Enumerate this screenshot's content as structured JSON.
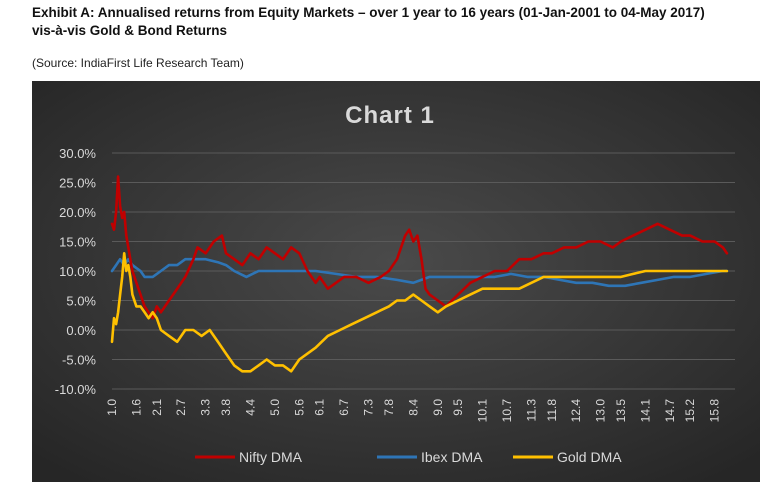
{
  "exhibit": {
    "title_line1": "Exhibit A: Annualised returns from Equity Markets – over 1 year to 16 years (01-Jan-2001 to 04-May 2017)",
    "title_line2": "vis-à-vis Gold & Bond Returns",
    "source": "(Source: IndiaFirst Life Research Team)"
  },
  "colors": {
    "background": "#3a3a3a",
    "nifty": "#c00000",
    "ibex": "#2e75b6",
    "gold": "#ffc000",
    "text": "#d9d9d9"
  },
  "chart_data": {
    "type": "line",
    "title": "Chart 1",
    "xlabel": "",
    "ylabel": "",
    "ylim": [
      -0.1,
      0.3
    ],
    "ytick_labels": [
      "30.0%",
      "25.0%",
      "20.0%",
      "15.0%",
      "10.0%",
      "5.0%",
      "0.0%",
      "-5.0%",
      "-10.0%"
    ],
    "ytick_values": [
      0.3,
      0.25,
      0.2,
      0.15,
      0.1,
      0.05,
      0.0,
      -0.05,
      -0.1
    ],
    "xlim": [
      1.0,
      16.3
    ],
    "xtick_labels": [
      "1.0",
      "1.6",
      "2.1",
      "2.7",
      "3.3",
      "3.8",
      "4.4",
      "5.0",
      "5.6",
      "6.1",
      "6.7",
      "7.3",
      "7.8",
      "8.4",
      "9.0",
      "9.5",
      "10.1",
      "10.7",
      "11.3",
      "11.8",
      "12.4",
      "13.0",
      "13.5",
      "14.1",
      "14.7",
      "15.2",
      "15.8"
    ],
    "grid": true,
    "legend": "bottom",
    "series": [
      {
        "name": "Nifty DMA",
        "x": [
          1.0,
          1.05,
          1.1,
          1.15,
          1.2,
          1.25,
          1.3,
          1.35,
          1.4,
          1.45,
          1.5,
          1.6,
          1.7,
          1.8,
          1.9,
          2.0,
          2.1,
          2.2,
          2.4,
          2.6,
          2.8,
          3.0,
          3.1,
          3.3,
          3.5,
          3.7,
          3.8,
          4.0,
          4.2,
          4.4,
          4.6,
          4.8,
          5.0,
          5.2,
          5.4,
          5.6,
          5.8,
          6.0,
          6.1,
          6.3,
          6.5,
          6.7,
          7.0,
          7.3,
          7.6,
          7.8,
          8.0,
          8.2,
          8.3,
          8.4,
          8.5,
          8.6,
          8.7,
          8.8,
          9.0,
          9.2,
          9.5,
          9.8,
          10.1,
          10.4,
          10.7,
          11.0,
          11.3,
          11.6,
          11.8,
          12.1,
          12.4,
          12.7,
          13.0,
          13.3,
          13.5,
          13.8,
          14.1,
          14.4,
          14.7,
          15.0,
          15.2,
          15.5,
          15.8,
          16.0,
          16.1
        ],
        "y": [
          0.18,
          0.17,
          0.2,
          0.26,
          0.21,
          0.19,
          0.2,
          0.16,
          0.14,
          0.12,
          0.1,
          0.08,
          0.06,
          0.04,
          0.03,
          0.02,
          0.04,
          0.03,
          0.05,
          0.07,
          0.09,
          0.12,
          0.14,
          0.13,
          0.15,
          0.16,
          0.13,
          0.12,
          0.11,
          0.13,
          0.12,
          0.14,
          0.13,
          0.12,
          0.14,
          0.13,
          0.1,
          0.08,
          0.09,
          0.07,
          0.08,
          0.09,
          0.09,
          0.08,
          0.09,
          0.1,
          0.12,
          0.16,
          0.17,
          0.15,
          0.16,
          0.12,
          0.07,
          0.06,
          0.05,
          0.04,
          0.06,
          0.08,
          0.09,
          0.1,
          0.1,
          0.12,
          0.12,
          0.13,
          0.13,
          0.14,
          0.14,
          0.15,
          0.15,
          0.14,
          0.15,
          0.16,
          0.17,
          0.18,
          0.17,
          0.16,
          0.16,
          0.15,
          0.15,
          0.14,
          0.13
        ]
      },
      {
        "name": "Ibex DMA",
        "x": [
          1.0,
          1.1,
          1.2,
          1.3,
          1.4,
          1.5,
          1.6,
          1.7,
          1.8,
          2.0,
          2.2,
          2.4,
          2.6,
          2.8,
          3.0,
          3.3,
          3.6,
          3.8,
          4.0,
          4.3,
          4.6,
          5.0,
          5.5,
          6.0,
          6.5,
          7.0,
          7.5,
          8.0,
          8.4,
          8.8,
          9.2,
          9.6,
          10.0,
          10.4,
          10.8,
          11.2,
          11.6,
          12.0,
          12.4,
          12.8,
          13.2,
          13.6,
          14.0,
          14.4,
          14.8,
          15.2,
          15.6,
          16.0,
          16.1
        ],
        "y": [
          0.1,
          0.11,
          0.12,
          0.11,
          0.12,
          0.11,
          0.105,
          0.1,
          0.09,
          0.09,
          0.1,
          0.11,
          0.11,
          0.12,
          0.12,
          0.12,
          0.115,
          0.11,
          0.1,
          0.09,
          0.1,
          0.1,
          0.1,
          0.1,
          0.095,
          0.09,
          0.09,
          0.085,
          0.08,
          0.09,
          0.09,
          0.09,
          0.09,
          0.09,
          0.095,
          0.09,
          0.09,
          0.085,
          0.08,
          0.08,
          0.075,
          0.075,
          0.08,
          0.085,
          0.09,
          0.09,
          0.095,
          0.1,
          0.1
        ]
      },
      {
        "name": "Gold DMA",
        "x": [
          1.0,
          1.05,
          1.1,
          1.15,
          1.2,
          1.25,
          1.3,
          1.35,
          1.4,
          1.45,
          1.5,
          1.6,
          1.7,
          1.8,
          1.9,
          2.0,
          2.1,
          2.2,
          2.4,
          2.6,
          2.8,
          3.0,
          3.2,
          3.4,
          3.6,
          3.8,
          4.0,
          4.2,
          4.4,
          4.6,
          4.8,
          5.0,
          5.2,
          5.4,
          5.6,
          5.8,
          6.0,
          6.3,
          6.6,
          6.9,
          7.2,
          7.5,
          7.8,
          8.0,
          8.2,
          8.4,
          8.6,
          8.8,
          9.0,
          9.2,
          9.5,
          9.8,
          10.1,
          10.4,
          10.7,
          11.0,
          11.3,
          11.6,
          11.8,
          12.1,
          12.4,
          12.7,
          13.0,
          13.3,
          13.5,
          13.8,
          14.1,
          14.4,
          14.7,
          15.0,
          15.2,
          15.5,
          15.8,
          16.0,
          16.1
        ],
        "y": [
          -0.02,
          0.02,
          0.01,
          0.03,
          0.06,
          0.09,
          0.13,
          0.1,
          0.11,
          0.09,
          0.06,
          0.04,
          0.04,
          0.03,
          0.02,
          0.03,
          0.02,
          0.0,
          -0.01,
          -0.02,
          0.0,
          0.0,
          -0.01,
          0.0,
          -0.02,
          -0.04,
          -0.06,
          -0.07,
          -0.07,
          -0.06,
          -0.05,
          -0.06,
          -0.06,
          -0.07,
          -0.05,
          -0.04,
          -0.03,
          -0.01,
          0.0,
          0.01,
          0.02,
          0.03,
          0.04,
          0.05,
          0.05,
          0.06,
          0.05,
          0.04,
          0.03,
          0.04,
          0.05,
          0.06,
          0.07,
          0.07,
          0.07,
          0.07,
          0.08,
          0.09,
          0.09,
          0.09,
          0.09,
          0.09,
          0.09,
          0.09,
          0.09,
          0.095,
          0.1,
          0.1,
          0.1,
          0.1,
          0.1,
          0.1,
          0.1,
          0.1,
          0.1
        ]
      }
    ]
  }
}
